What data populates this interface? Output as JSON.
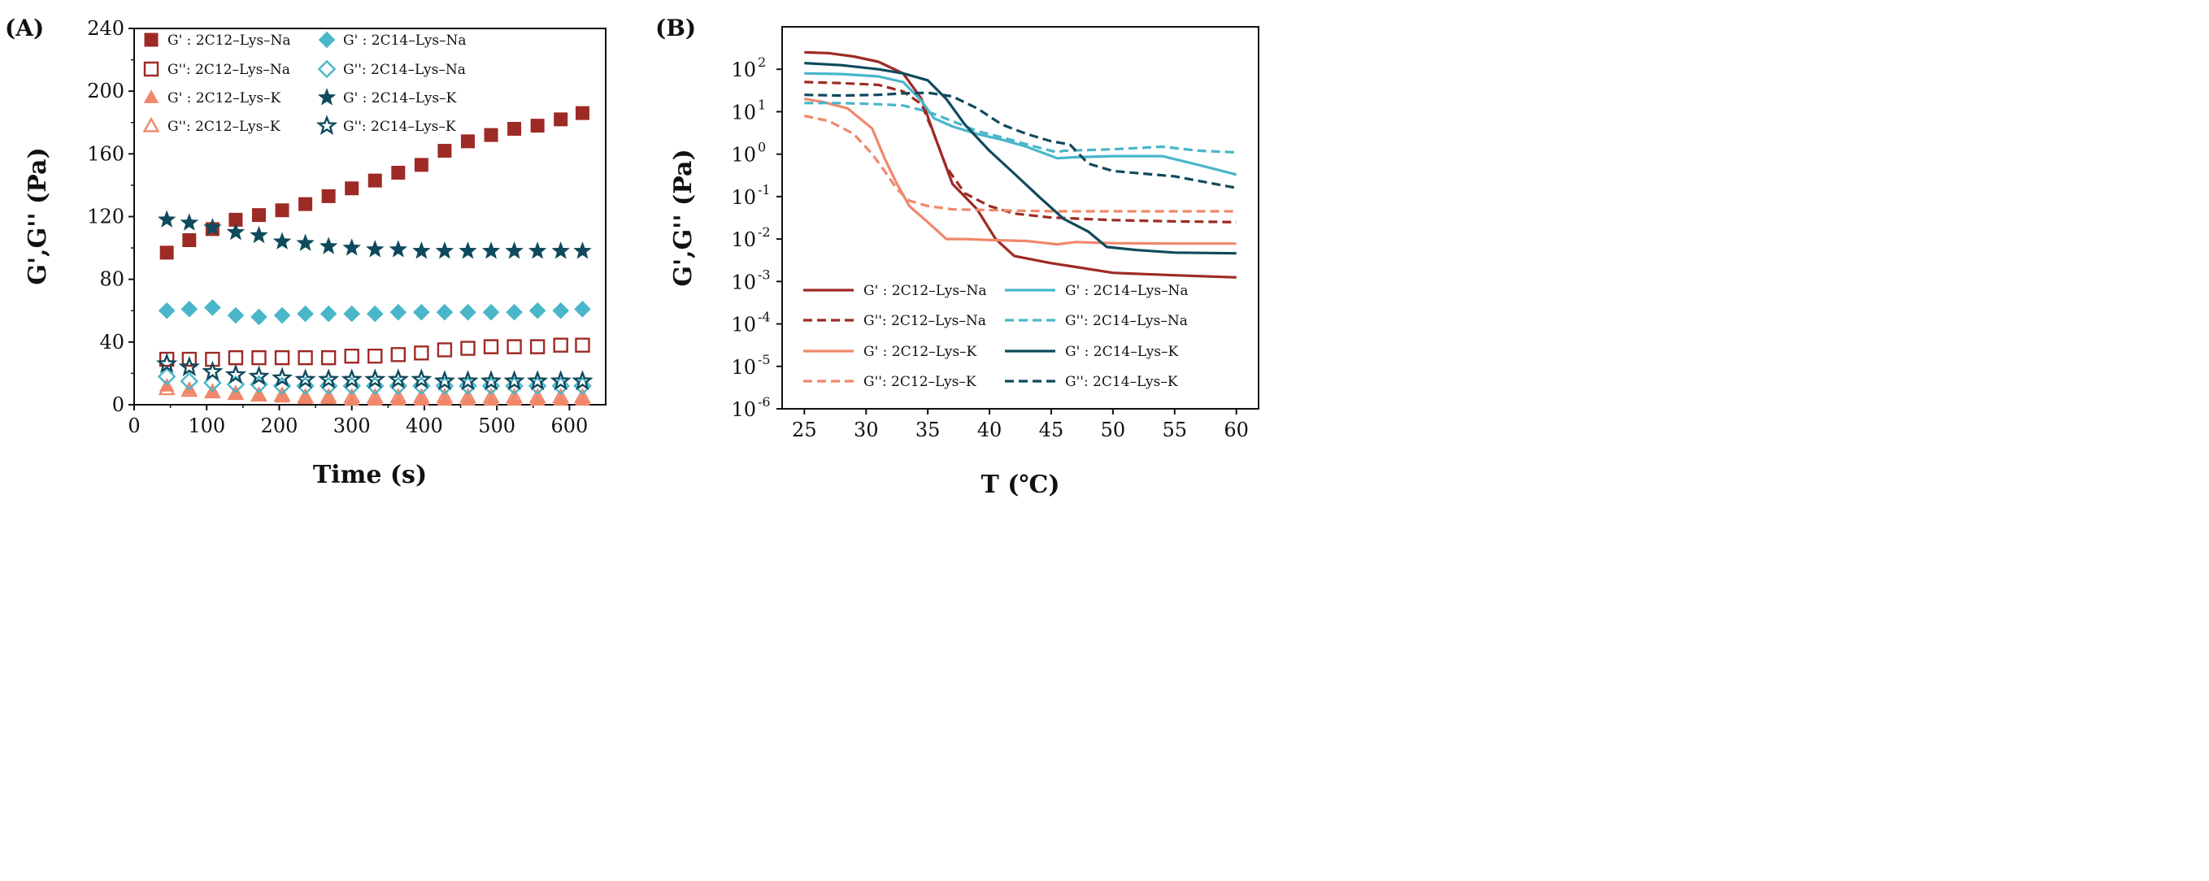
{
  "colors": {
    "dark_red": "#9e2a25",
    "salmon": "#f0876a",
    "light_blue": "#49b6c9",
    "dark_teal": "#0f4a5c"
  },
  "chart_data": [
    {
      "panel_label": "(A)",
      "type": "scatter",
      "xlabel": "Time (s)",
      "ylabel": "G',G'' (Pa)",
      "xlim": [
        0,
        650
      ],
      "ylim": [
        0,
        240
      ],
      "xticks": [
        0,
        100,
        200,
        300,
        400,
        500,
        600
      ],
      "yticks": [
        0,
        40,
        80,
        120,
        160,
        200,
        240
      ],
      "legend_position": "top-left",
      "x": [
        45,
        76,
        108,
        140,
        172,
        204,
        236,
        268,
        300,
        332,
        364,
        396,
        428,
        460,
        492,
        524,
        556,
        588,
        618
      ],
      "series": [
        {
          "name": "G' : 2C12–Lys–Na",
          "marker": "square",
          "filled": true,
          "color": "#9e2a25",
          "values": [
            97,
            105,
            112,
            118,
            121,
            124,
            128,
            133,
            138,
            143,
            148,
            153,
            162,
            168,
            172,
            176,
            178,
            182,
            186
          ]
        },
        {
          "name": "G'': 2C12–Lys–Na",
          "marker": "square",
          "filled": false,
          "color": "#9e2a25",
          "values": [
            29,
            29,
            29,
            30,
            30,
            30,
            30,
            30,
            31,
            31,
            32,
            33,
            35,
            36,
            37,
            37,
            37,
            38,
            38
          ]
        },
        {
          "name": "G' : 2C12–Lys–K",
          "marker": "triangle",
          "filled": true,
          "color": "#f0876a",
          "values": [
            12,
            10,
            8,
            7,
            6,
            5,
            4,
            4,
            3,
            3,
            3,
            3,
            3,
            3,
            3,
            3,
            3,
            3,
            3
          ]
        },
        {
          "name": "G'': 2C12–Lys–K",
          "marker": "triangle",
          "filled": false,
          "color": "#f0876a",
          "values": [
            10,
            9,
            8,
            7,
            6,
            6,
            5,
            5,
            5,
            5,
            5,
            5,
            5,
            5,
            5,
            5,
            5,
            5,
            5
          ]
        },
        {
          "name": "G' : 2C14–Lys–Na",
          "marker": "diamond",
          "filled": true,
          "color": "#49b6c9",
          "values": [
            60,
            61,
            62,
            57,
            56,
            57,
            58,
            58,
            58,
            58,
            59,
            59,
            59,
            59,
            59,
            59,
            60,
            60,
            61
          ]
        },
        {
          "name": "G'': 2C14–Lys–Na",
          "marker": "diamond",
          "filled": false,
          "color": "#49b6c9",
          "values": [
            18,
            15,
            14,
            13,
            13,
            12,
            12,
            12,
            12,
            12,
            12,
            12,
            12,
            12,
            12,
            12,
            12,
            12,
            12
          ]
        },
        {
          "name": "G' : 2C14–Lys–K",
          "marker": "star",
          "filled": true,
          "color": "#0f4a5c",
          "values": [
            118,
            116,
            113,
            110,
            108,
            104,
            103,
            101,
            100,
            99,
            99,
            98,
            98,
            98,
            98,
            98,
            98,
            98,
            98
          ]
        },
        {
          "name": "G'': 2C14–Lys–K",
          "marker": "star",
          "filled": false,
          "color": "#0f4a5c",
          "values": [
            26,
            24,
            21,
            19,
            18,
            17,
            16,
            16,
            16,
            16,
            16,
            16,
            15,
            15,
            15,
            15,
            15,
            15,
            15
          ]
        }
      ]
    },
    {
      "panel_label": "(B)",
      "type": "line",
      "xlabel": "T (℃)",
      "ylabel": "G',G'' (Pa)",
      "xlim": [
        23.2,
        61.8
      ],
      "ylim": [
        1e-06,
        1000
      ],
      "yscale": "log",
      "xticks": [
        25,
        30,
        35,
        40,
        45,
        50,
        55,
        60
      ],
      "ytick_bases": [
        "10",
        "10",
        "10",
        "10",
        "10",
        "10",
        "10",
        "10",
        "10"
      ],
      "ytick_exponents": [
        "-6",
        "-5",
        "-4",
        "-3",
        "-2",
        "-1",
        "0",
        "1",
        "2"
      ],
      "legend_position": "bottom",
      "series": [
        {
          "name": "G' : 2C12–Lys–Na",
          "dashed": false,
          "color": "#9e2a25",
          "x": [
            25,
            27,
            29,
            31,
            33,
            34.5,
            35.5,
            37,
            39,
            40.5,
            42,
            43,
            45,
            47,
            50,
            55,
            60
          ],
          "y": [
            250,
            240,
            200,
            150,
            80,
            20,
            3,
            0.2,
            0.05,
            0.01,
            0.004,
            0.0035,
            0.0027,
            0.0022,
            0.0016,
            0.0014,
            0.00125
          ]
        },
        {
          "name": "G'': 2C12–Lys–Na",
          "dashed": true,
          "color": "#9e2a25",
          "x": [
            25,
            28,
            31,
            33,
            34.5,
            35.5,
            36.5,
            38,
            40,
            42,
            45,
            50,
            55,
            60
          ],
          "y": [
            50,
            47,
            43,
            30,
            15,
            3,
            0.5,
            0.12,
            0.06,
            0.04,
            0.032,
            0.028,
            0.026,
            0.025
          ]
        },
        {
          "name": "G' : 2C12–Lys–K",
          "dashed": false,
          "color": "#f0876a",
          "x": [
            25,
            26.5,
            28.5,
            30.5,
            31.5,
            32.5,
            33.5,
            35,
            36.5,
            38,
            40,
            43,
            45.5,
            47,
            50,
            55,
            60
          ],
          "y": [
            20,
            17,
            12,
            4,
            0.8,
            0.2,
            0.06,
            0.025,
            0.01,
            0.01,
            0.0095,
            0.009,
            0.0075,
            0.0085,
            0.008,
            0.0078,
            0.0078
          ]
        },
        {
          "name": "G'': 2C12–Lys–K",
          "dashed": true,
          "color": "#f0876a",
          "x": [
            25,
            27,
            29,
            30.5,
            31.5,
            32.5,
            33.5,
            35,
            37,
            40,
            45,
            50,
            55,
            60
          ],
          "y": [
            8,
            6,
            3,
            1,
            0.4,
            0.15,
            0.08,
            0.06,
            0.05,
            0.048,
            0.045,
            0.045,
            0.045,
            0.045
          ]
        },
        {
          "name": "G' : 2C14–Lys–Na",
          "dashed": false,
          "color": "#49b6c9",
          "x": [
            25,
            28,
            31,
            33,
            34.5,
            35.5,
            37,
            39,
            41,
            43,
            45.5,
            47,
            50,
            54,
            57,
            60
          ],
          "y": [
            80,
            77,
            68,
            50,
            18,
            7,
            4.5,
            3,
            2.2,
            1.5,
            0.8,
            0.85,
            0.9,
            0.9,
            0.55,
            0.33
          ]
        },
        {
          "name": "G'': 2C14–Lys–Na",
          "dashed": true,
          "color": "#49b6c9",
          "x": [
            25,
            28,
            31,
            33,
            35,
            37,
            39,
            41,
            43,
            45.5,
            46,
            50,
            54,
            57,
            60
          ],
          "y": [
            16,
            16,
            15,
            14,
            10,
            6,
            3.5,
            2.5,
            1.7,
            1.1,
            1.2,
            1.3,
            1.5,
            1.2,
            1.1
          ]
        },
        {
          "name": "G' : 2C14–Lys–K",
          "dashed": false,
          "color": "#0f4a5c",
          "x": [
            25,
            28,
            31,
            33,
            35,
            36.5,
            38,
            40,
            42,
            44,
            46,
            48,
            49.5,
            52,
            55,
            60
          ],
          "y": [
            140,
            125,
            100,
            80,
            55,
            20,
            5,
            1.2,
            0.35,
            0.1,
            0.03,
            0.015,
            0.0065,
            0.0055,
            0.0048,
            0.0046
          ]
        },
        {
          "name": "G'': 2C14–Lys–K",
          "dashed": true,
          "color": "#0f4a5c",
          "x": [
            25,
            28,
            31,
            33,
            35,
            37,
            39,
            41,
            43,
            45,
            46.5,
            48,
            50,
            55,
            60
          ],
          "y": [
            25,
            24,
            25,
            27,
            28,
            23,
            12,
            5,
            3,
            2,
            1.7,
            0.6,
            0.4,
            0.3,
            0.16
          ]
        }
      ]
    }
  ]
}
